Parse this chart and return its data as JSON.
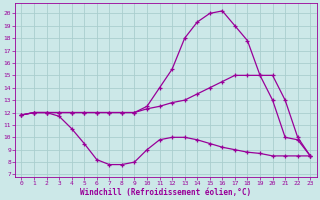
{
  "x_full": [
    0,
    1,
    2,
    3,
    4,
    5,
    6,
    7,
    8,
    9,
    10,
    11,
    12,
    13,
    14,
    15,
    16,
    17,
    18,
    19,
    20,
    21,
    22,
    23
  ],
  "line_arch_x": [
    0,
    1,
    2,
    3,
    4,
    5,
    6,
    7,
    8,
    9,
    10,
    11,
    12,
    13,
    14,
    15,
    16,
    17,
    18,
    19,
    20,
    21,
    22,
    23
  ],
  "line_arch_y": [
    11.8,
    12.0,
    12.0,
    12.0,
    12.0,
    12.0,
    12.0,
    12.0,
    12.0,
    12.0,
    12.5,
    14.0,
    15.5,
    18.0,
    19.3,
    20.0,
    20.2,
    19.0,
    17.8,
    15.0,
    13.0,
    10.0,
    9.8,
    8.5
  ],
  "line_diag_x": [
    0,
    1,
    2,
    3,
    4,
    5,
    6,
    7,
    8,
    9,
    10,
    11,
    12,
    13,
    14,
    15,
    16,
    17,
    18,
    19,
    20,
    21,
    22,
    23
  ],
  "line_diag_y": [
    11.8,
    12.0,
    12.0,
    12.0,
    12.0,
    12.0,
    12.0,
    12.0,
    12.0,
    12.0,
    12.3,
    12.5,
    12.8,
    13.0,
    13.5,
    14.0,
    14.5,
    15.0,
    15.0,
    15.0,
    15.0,
    13.0,
    10.0,
    8.5
  ],
  "line_low_x": [
    0,
    1,
    2,
    3,
    4,
    5,
    6,
    7,
    8,
    9,
    10,
    11,
    12,
    13,
    14,
    15,
    16,
    17,
    18,
    19,
    20,
    21,
    22,
    23
  ],
  "line_low_y": [
    11.8,
    12.0,
    12.0,
    11.7,
    10.7,
    9.5,
    8.2,
    7.8,
    7.8,
    8.0,
    9.0,
    9.8,
    10.0,
    10.0,
    9.8,
    9.5,
    9.2,
    9.0,
    8.8,
    8.7,
    8.5,
    8.5,
    8.5,
    8.5
  ],
  "line_color": "#990099",
  "bg_color": "#cce8e8",
  "grid_color": "#aacece",
  "xlabel": "Windchill (Refroidissement éolien,°C)",
  "ylim": [
    6.8,
    20.8
  ],
  "xlim": [
    -0.5,
    23.5
  ],
  "yticks": [
    7,
    8,
    9,
    10,
    11,
    12,
    13,
    14,
    15,
    16,
    17,
    18,
    19,
    20
  ],
  "xticks": [
    0,
    1,
    2,
    3,
    4,
    5,
    6,
    7,
    8,
    9,
    10,
    11,
    12,
    13,
    14,
    15,
    16,
    17,
    18,
    19,
    20,
    21,
    22,
    23
  ]
}
